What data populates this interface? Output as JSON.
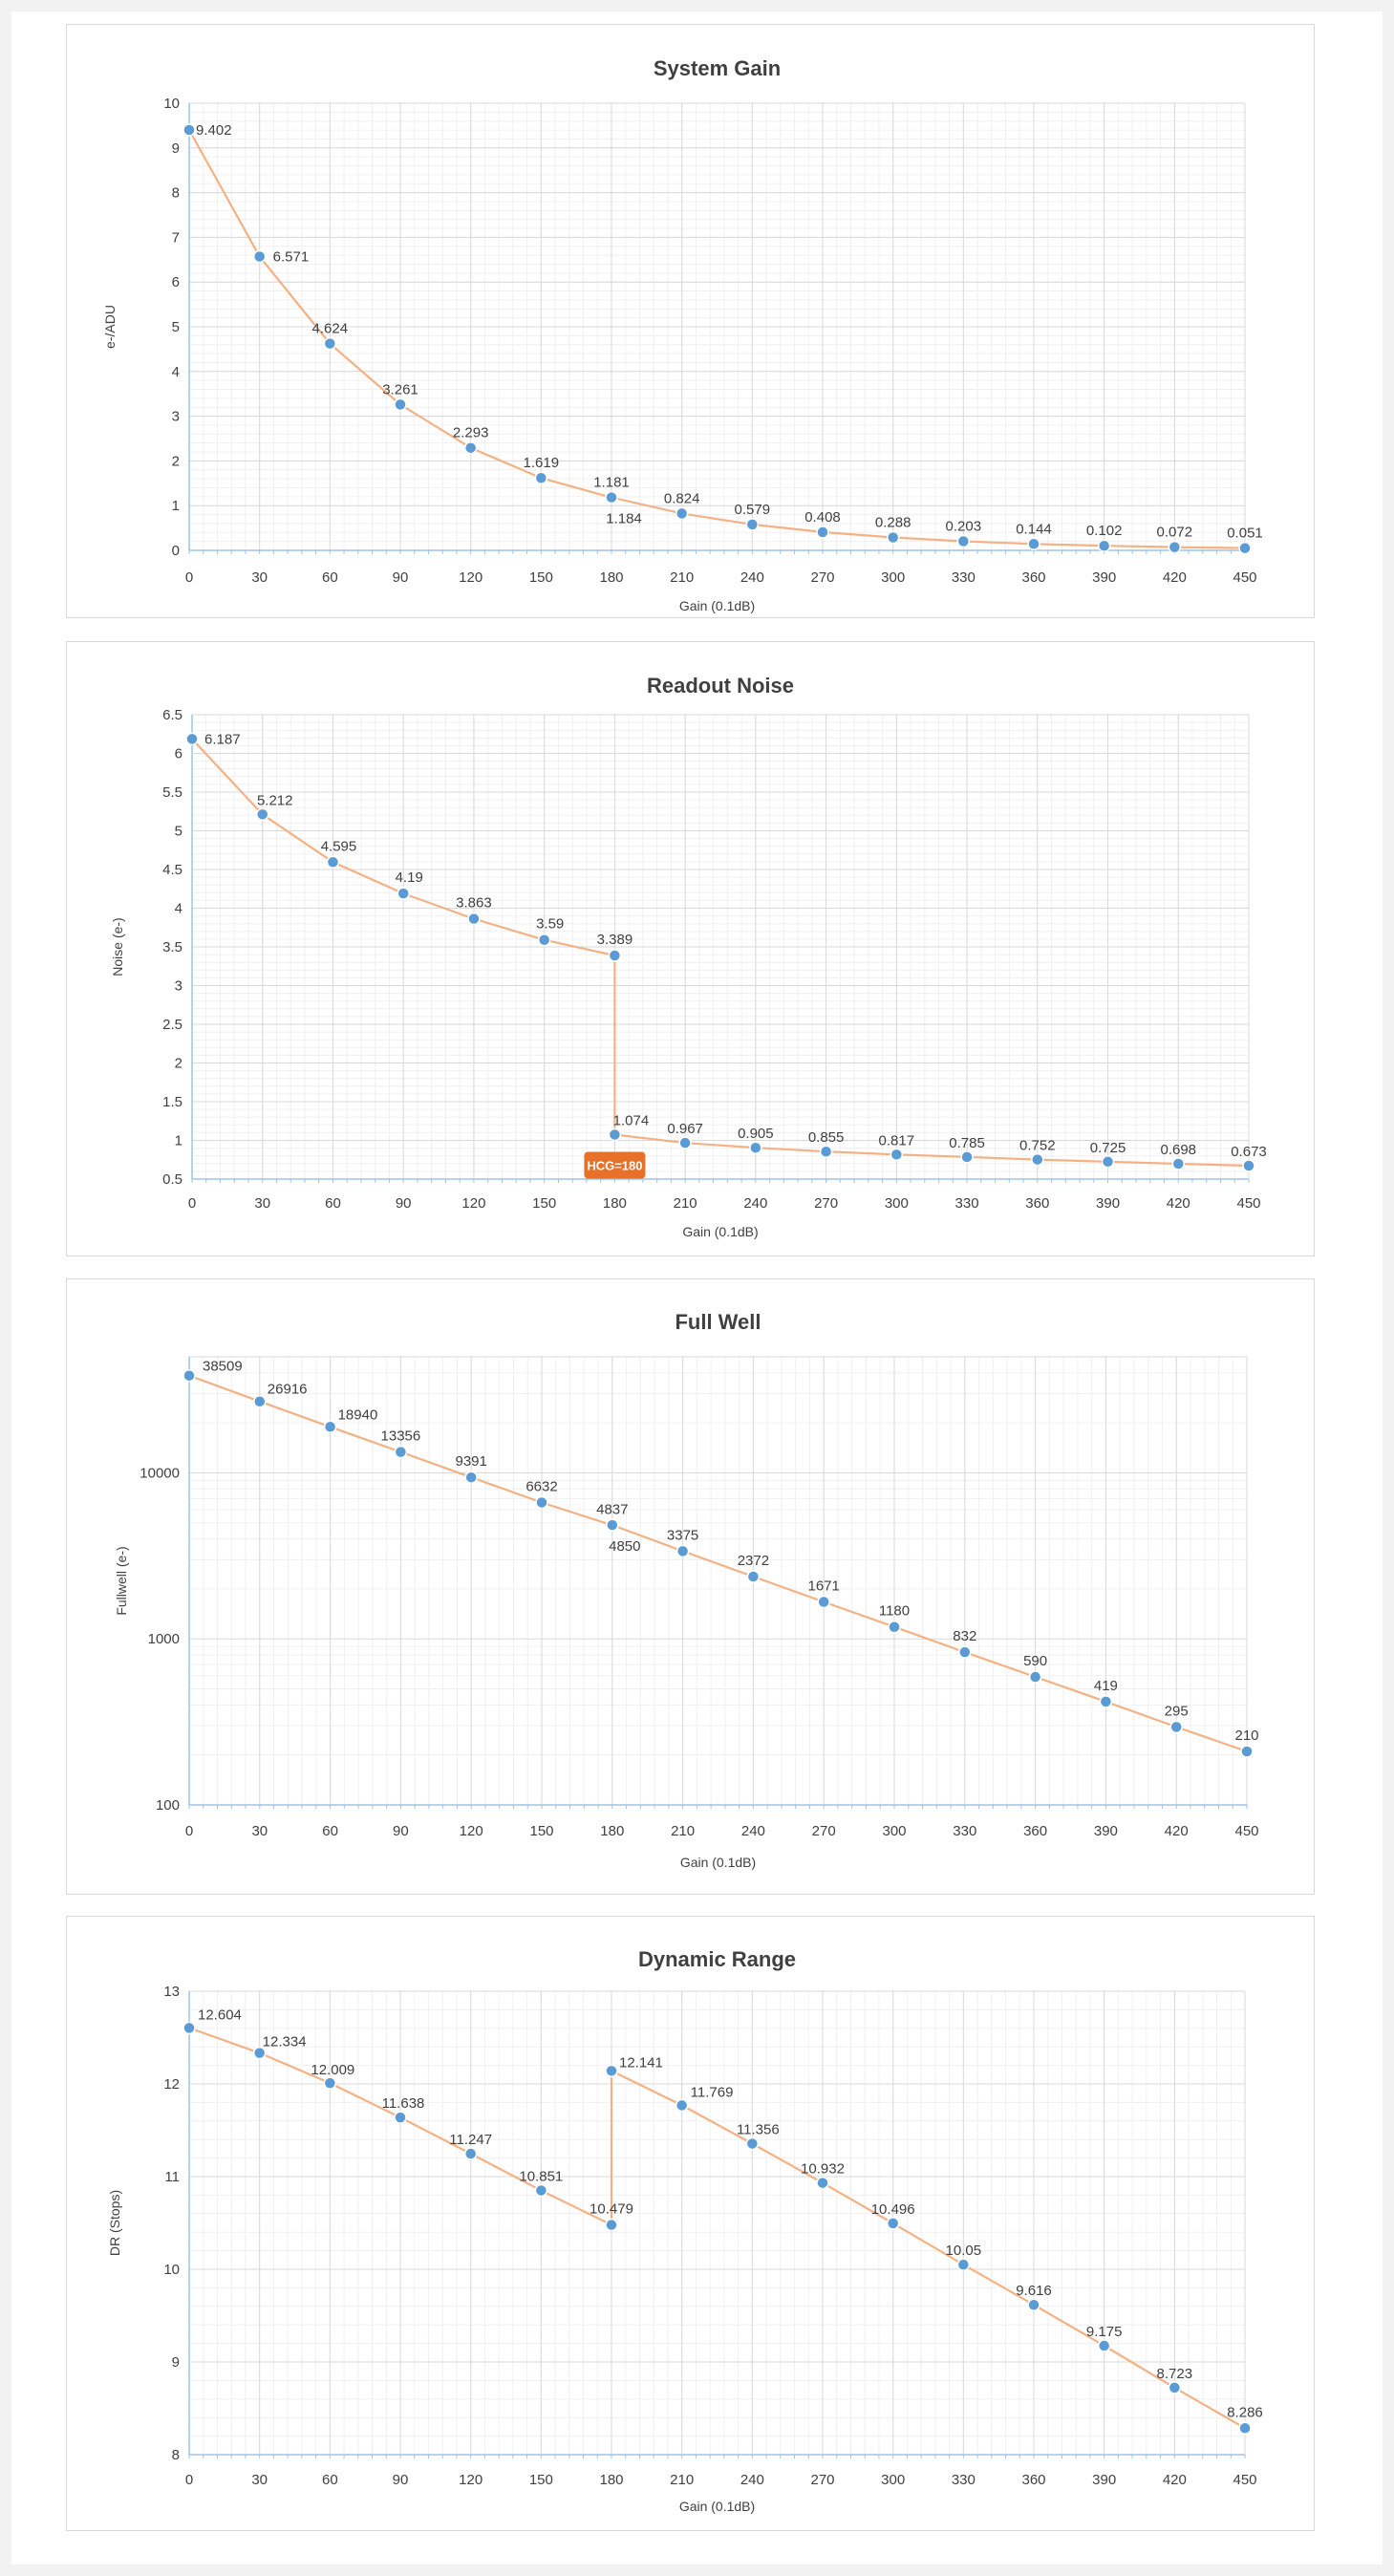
{
  "colors": {
    "line": "#f4b183",
    "marker": "#5b9bd5",
    "markerStroke": "#ffffff",
    "majorGrid": "#d9d9d9",
    "minorGrid": "#f0f0f0",
    "axis": "#9dc3e6",
    "badge": "#e8712a"
  },
  "chart_data": [
    {
      "type": "line",
      "title": "System Gain",
      "xlabel": "Gain (0.1dB)",
      "ylabel": "e-/ADU",
      "xlim": [
        0,
        450
      ],
      "ylim": [
        0,
        10
      ],
      "xticks": [
        0,
        30,
        60,
        90,
        120,
        150,
        180,
        210,
        240,
        270,
        300,
        330,
        360,
        390,
        420,
        450
      ],
      "yticks": [
        0,
        1,
        2,
        3,
        4,
        5,
        6,
        7,
        8,
        9,
        10
      ],
      "grid": true,
      "yscale": "linear",
      "series": [
        {
          "x": [
            0,
            30,
            60,
            90,
            120,
            150,
            180,
            180,
            210,
            240,
            270,
            300,
            330,
            360,
            390,
            420,
            450
          ],
          "values": [
            9.402,
            6.571,
            4.624,
            3.261,
            2.293,
            1.619,
            1.181,
            1.184,
            0.824,
            0.579,
            0.408,
            0.288,
            0.203,
            0.144,
            0.102,
            0.072,
            0.051
          ],
          "labels": [
            "9.402",
            "6.571",
            "4.624",
            "3.261",
            "2.293",
            "1.619",
            "1.181",
            "1.184",
            "0.824",
            "0.579",
            "0.408",
            "0.288",
            "0.203",
            "0.144",
            "0.102",
            "0.072",
            "0.051"
          ]
        }
      ]
    },
    {
      "type": "line",
      "title": "Readout Noise",
      "xlabel": "Gain (0.1dB)",
      "ylabel": "Noise (e-)",
      "xlim": [
        0,
        450
      ],
      "ylim": [
        0.5,
        6.5
      ],
      "xticks": [
        0,
        30,
        60,
        90,
        120,
        150,
        180,
        210,
        240,
        270,
        300,
        330,
        360,
        390,
        420,
        450
      ],
      "yticks": [
        0.5,
        1,
        1.5,
        2,
        2.5,
        3,
        3.5,
        4,
        4.5,
        5,
        5.5,
        6,
        6.5
      ],
      "grid": true,
      "yscale": "linear",
      "annotation": {
        "text": "HCG=180",
        "x": 180
      },
      "series": [
        {
          "x": [
            0,
            30,
            60,
            90,
            120,
            150,
            180,
            180,
            210,
            240,
            270,
            300,
            330,
            360,
            390,
            420,
            450
          ],
          "values": [
            6.187,
            5.212,
            4.595,
            4.19,
            3.863,
            3.59,
            3.389,
            1.074,
            0.967,
            0.905,
            0.855,
            0.817,
            0.785,
            0.752,
            0.725,
            0.698,
            0.673
          ],
          "labels": [
            "6.187",
            "5.212",
            "4.595",
            "4.19",
            "3.863",
            "3.59",
            "3.389",
            "1.074",
            "0.967",
            "0.905",
            "0.855",
            "0.817",
            "0.785",
            "0.752",
            "0.725",
            "0.698",
            "0.673"
          ]
        }
      ]
    },
    {
      "type": "line",
      "title": "Full Well",
      "xlabel": "Gain (0.1dB)",
      "ylabel": "Fullwell (e-)",
      "xlim": [
        0,
        450
      ],
      "ylim": [
        100,
        50000
      ],
      "xticks": [
        0,
        30,
        60,
        90,
        120,
        150,
        180,
        210,
        240,
        270,
        300,
        330,
        360,
        390,
        420,
        450
      ],
      "yticks": [
        100,
        1000,
        10000
      ],
      "grid": true,
      "yscale": "log",
      "series": [
        {
          "x": [
            0,
            30,
            60,
            90,
            120,
            150,
            180,
            180,
            210,
            240,
            270,
            300,
            330,
            360,
            390,
            420,
            450
          ],
          "values": [
            38509,
            26916,
            18940,
            13356,
            9391,
            6632,
            4837,
            4850,
            3375,
            2372,
            1671,
            1180,
            832,
            590,
            419,
            295,
            210
          ],
          "labels": [
            "38509",
            "26916",
            "18940",
            "13356",
            "9391",
            "6632",
            "4837",
            "4850",
            "3375",
            "2372",
            "1671",
            "1180",
            "832",
            "590",
            "419",
            "295",
            "210"
          ]
        }
      ]
    },
    {
      "type": "line",
      "title": "Dynamic Range",
      "xlabel": "Gain (0.1dB)",
      "ylabel": "DR (Stops)",
      "xlim": [
        0,
        450
      ],
      "ylim": [
        8,
        13
      ],
      "xticks": [
        0,
        30,
        60,
        90,
        120,
        150,
        180,
        210,
        240,
        270,
        300,
        330,
        360,
        390,
        420,
        450
      ],
      "yticks": [
        8,
        9,
        10,
        11,
        12,
        13
      ],
      "grid": true,
      "yscale": "linear",
      "series": [
        {
          "x": [
            0,
            30,
            60,
            90,
            120,
            150,
            180,
            180,
            210,
            240,
            270,
            300,
            330,
            360,
            390,
            420,
            450
          ],
          "values": [
            12.604,
            12.334,
            12.009,
            11.638,
            11.247,
            10.851,
            10.479,
            12.141,
            11.769,
            11.356,
            10.932,
            10.496,
            10.05,
            9.616,
            9.175,
            8.723,
            8.286
          ],
          "labels": [
            "12.604",
            "12.334",
            "12.009",
            "11.638",
            "11.247",
            "10.851",
            "10.479",
            "12.141",
            "11.769",
            "11.356",
            "10.932",
            "10.496",
            "10.05",
            "9.616",
            "9.175",
            "8.723",
            "8.286"
          ]
        }
      ]
    }
  ]
}
